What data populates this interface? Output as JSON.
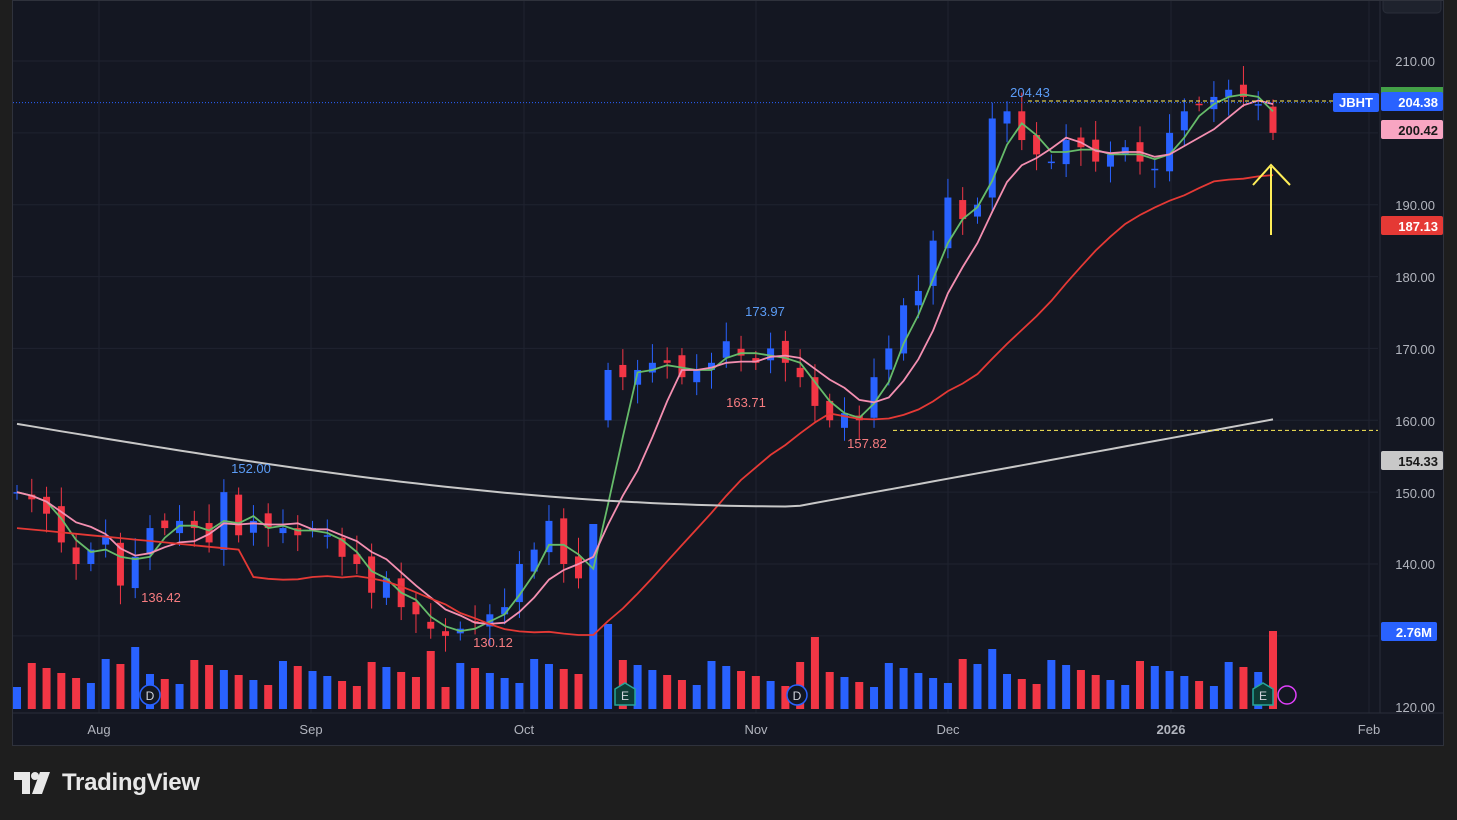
{
  "brand": {
    "name": "TradingView"
  },
  "colors": {
    "up": "#2962ff",
    "down": "#f23645",
    "ma10": "#66bb6a",
    "ma20": "#f48fb1",
    "ma50": "#e53935",
    "ma200": "#c8c8c8",
    "arrow": "#ffee58",
    "bg": "#141722"
  },
  "chart_data": {
    "type": "candlestick",
    "symbol": "JBHT",
    "ylim": [
      120,
      212
    ],
    "y_ticks": [
      "210.00",
      "190.00",
      "180.00",
      "170.00",
      "160.00",
      "150.00",
      "140.00",
      "120.00"
    ],
    "x_labels": [
      "Aug",
      "Sep",
      "Oct",
      "Nov",
      "Dec",
      "2026",
      "Feb"
    ],
    "price_labels": {
      "last": "204.38",
      "ma20": "200.42",
      "ma50": "187.13",
      "ma200": "154.33",
      "volume": "2.76M"
    },
    "annotations": [
      "152.00",
      "136.42",
      "130.12",
      "173.97",
      "163.71",
      "157.82",
      "204.43"
    ],
    "event_markers": [
      "D",
      "E",
      "D",
      "E"
    ],
    "series_sample": {
      "close": [
        150,
        149,
        147,
        143,
        140,
        142,
        144,
        137,
        141,
        145,
        145,
        146,
        145,
        143,
        150,
        144,
        146,
        145,
        145,
        144,
        145,
        144,
        141,
        140,
        136,
        138,
        134,
        133,
        131,
        130,
        131,
        132,
        133,
        134,
        140,
        142,
        146,
        140,
        138,
        140,
        167,
        166,
        167,
        168,
        168,
        166,
        167,
        168,
        171,
        169,
        168,
        170,
        168,
        166,
        162,
        160,
        161,
        160,
        166,
        170,
        176,
        178,
        185,
        191,
        188,
        190,
        202,
        203,
        199,
        197,
        196,
        199,
        198,
        196,
        197,
        198,
        196,
        195,
        200,
        203,
        204,
        205,
        206,
        205,
        204,
        200
      ]
    }
  }
}
